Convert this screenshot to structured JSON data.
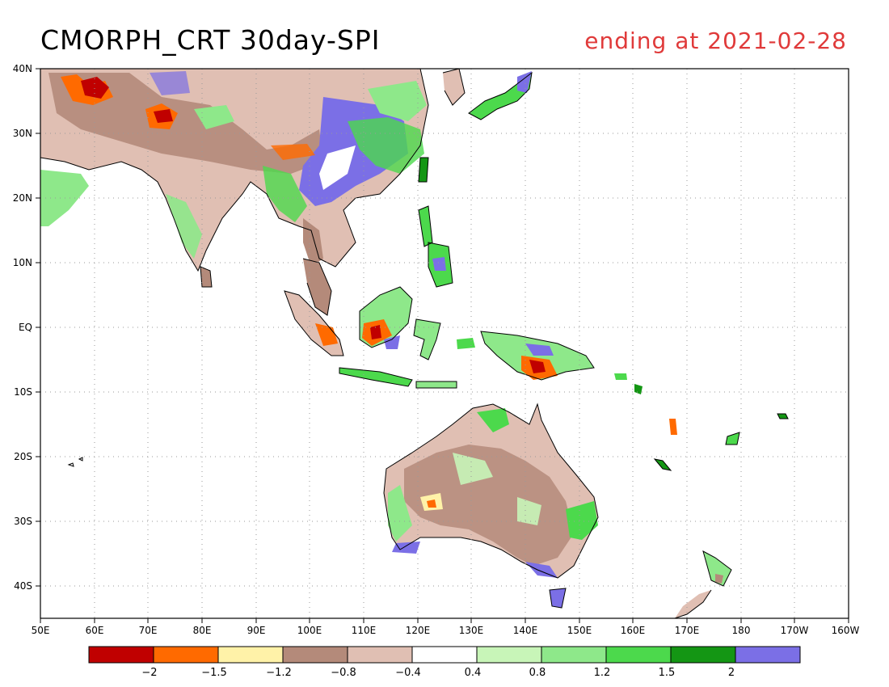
{
  "header": {
    "title": "CMORPH_CRT 30day-SPI",
    "subtitle": "ending at 2021-02-28"
  },
  "map": {
    "lat_ticks": [
      "40N",
      "30N",
      "20N",
      "10N",
      "EQ",
      "10S",
      "20S",
      "30S",
      "40S"
    ],
    "lon_ticks": [
      "50E",
      "60E",
      "70E",
      "80E",
      "90E",
      "100E",
      "110E",
      "120E",
      "130E",
      "140E",
      "150E",
      "160E",
      "170E",
      "180",
      "170W",
      "160W"
    ]
  },
  "colorbar": {
    "colors": [
      "#c00000",
      "#ff6a00",
      "#fff2a8",
      "#b48a7a",
      "#e0bfb3",
      "#ffffff",
      "#c8f5b8",
      "#8ee88a",
      "#4cd94c",
      "#149614",
      "#7b6fe6"
    ],
    "labels": [
      "-2",
      "-1.5",
      "-1.2",
      "-0.8",
      "-0.4",
      "0.4",
      "0.8",
      "1.2",
      "1.5",
      "2"
    ]
  },
  "colors": {
    "title": "#000000",
    "subtitle": "#e03a3a",
    "coastline": "#000000",
    "grid": "#9a9a9a"
  }
}
